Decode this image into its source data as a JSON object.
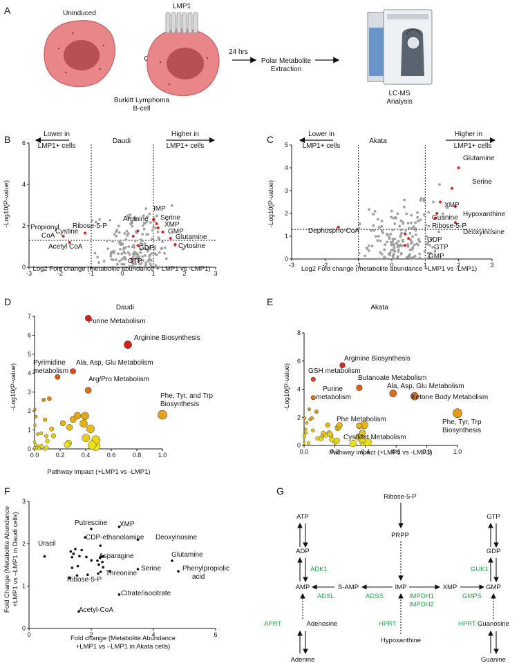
{
  "panels": {
    "A": {
      "letter": "A",
      "uninduced": "Uninduced",
      "or": "Or",
      "lmp1": "LMP1",
      "time": "24 hrs",
      "extraction_l1": "Polar Metabolite",
      "extraction_l2": "Extraction",
      "cell_l1": "Burkitt Lymphoma",
      "cell_l2": "B-cell",
      "lcms_l1": "LC-MS",
      "lcms_l2": "Analysis"
    },
    "B": {
      "letter": "B",
      "title": "Daudi",
      "lower_l1": "Lower in",
      "lower_l2": "LMP1+ cells",
      "higher_l1": "Higher in",
      "higher_l2": "LMP1+ cells",
      "ylabel": "-Log10(P-value)",
      "xlabel": "Log2 Fold change (metabolite abundance + LMP1 vs -LMP1)",
      "xticks": [
        "-3",
        "-2",
        "-1",
        "0",
        "1",
        "2",
        "3"
      ],
      "yticks": [
        "0",
        "2",
        "4",
        "6"
      ],
      "annotations": [
        "Propionyl",
        "CoA",
        "Cystine",
        "Acetyl CoA",
        "Ribose-5-P",
        "Arginine",
        "IMP",
        "Serine",
        "XMP",
        "GMP",
        "Glutamine",
        "Cytosine",
        "GDP",
        "GTP"
      ]
    },
    "C": {
      "letter": "C",
      "title": "Akata",
      "lower_l1": "Lower in",
      "lower_l2": "LMP1+ cells",
      "higher_l1": "Higher in",
      "higher_l2": "LMP1+ cells",
      "ylabel": "-Log10(P-value)",
      "xlabel": "Log2 Fold change (metabolite abundance +LMP1 vs -LMP1)",
      "xticks": [
        "-3",
        "-2",
        "-1",
        "0",
        "1",
        "2",
        "3"
      ],
      "yticks": [
        "0",
        "1",
        "2",
        "3",
        "4",
        "5"
      ],
      "annotations": [
        "Glutamine",
        "Serine",
        "XMP",
        "Hypoxanthine",
        "Guanine",
        "Ribose-5-P",
        "Deoxyinosine",
        "Dephospho-CoA",
        "GDP",
        "GTP",
        "GMP"
      ]
    },
    "D": {
      "letter": "D",
      "title_l1": "Daudi",
      "title_l2": "Purine Metabolism",
      "ylabel": "-Log10(P-value)",
      "xlabel": "Pathway impact (+LMP1 vs -LMP1)",
      "xticks": [
        "0.0",
        "0.2",
        "0.4",
        "0.6",
        "0.8",
        "1.0"
      ],
      "yticks": [
        "0",
        "1",
        "2",
        "3",
        "4",
        "5",
        "6",
        "7"
      ],
      "annotations": [
        "Arginine Biosynthesis",
        "Pyrimidine",
        "metabolism",
        "Ala, Asp, Glu Metabolism",
        "Arg/Pro Metabolism",
        "Phe, Tyr, and Trp",
        "Biosynthesis"
      ]
    },
    "E": {
      "letter": "E",
      "title": "Akata",
      "ylabel": "-Log10(P-value)",
      "xlabel": "Pathway impact (+LMP1 vs -LMP1)",
      "xticks": [
        "0.0",
        "0.2",
        "0.4",
        "0.6",
        "0.8",
        "1.0"
      ],
      "yticks": [
        "0",
        "2",
        "4",
        "6",
        "8"
      ],
      "annotations": [
        "Arginine Biosynthesis",
        "GSH metabolism",
        "Butanoate Metabolism",
        "Ala, Asp, Glu Metabolism",
        "Purine",
        "metabolism",
        "Ketone Body Metabolism",
        "Phe Metabolism",
        "Cys/Met Metabolism",
        "Phe, Tyr, Trp",
        "Biosynthesis"
      ]
    },
    "F": {
      "letter": "F",
      "ylabel_l1": "Fold Change (Metabolite Abundance",
      "ylabel_l2": "+LMP1 vs –LMP1 in Daudi cells)",
      "xlabel_l1": "Fold change (Metabolite Abundance",
      "xlabel_l2": "+LMP1 vs –LMP1 in Akata cells)",
      "xticks": [
        "0",
        "2",
        "4",
        "6"
      ],
      "yticks": [
        "0",
        "1",
        "2",
        "3"
      ],
      "annotations": [
        "Putrescine",
        "XMP",
        "CDP-ethanolamine",
        "Deoxyinosine",
        "Uracil",
        "Asparagine",
        "Glutamine",
        "Phenylpropiolic",
        "acid",
        "Serine",
        "Threonine",
        "Ribose-5-P",
        "Citrate/isocitrate",
        "Acetyl-CoA"
      ]
    },
    "G": {
      "letter": "G",
      "metabolites": [
        "Ribose-5-P",
        "PRPP",
        "ATP",
        "ADP",
        "AMP",
        "S-AMP",
        "IMP",
        "XMP",
        "GMP",
        "GDP",
        "GTP",
        "Adenosine",
        "Hypoxanthine",
        "Guanosine",
        "Adenine",
        "Guanine"
      ],
      "enzymes": [
        "ADK1",
        "ADSL",
        "ADSS",
        "IMPDH1",
        "IMPDH2",
        "GMPS",
        "GUK1",
        "APRT",
        "HPRT",
        "HPRT"
      ]
    }
  },
  "chart_data": [
    {
      "panel": "B",
      "type": "scatter",
      "title": "Daudi",
      "xlabel": "Log2 Fold change (metabolite abundance + LMP1 vs -LMP1)",
      "ylabel": "-Log10(P-value)",
      "xlim": [
        -3,
        3
      ],
      "ylim": [
        0,
        6
      ],
      "thresholds": {
        "x": [
          -1,
          1
        ],
        "y": 1.3
      },
      "highlighted": [
        {
          "name": "Propionyl CoA",
          "x": -1.9,
          "y": 1.5
        },
        {
          "name": "Cystine",
          "x": -1.2,
          "y": 1.65
        },
        {
          "name": "Acetyl CoA",
          "x": -1.7,
          "y": 1.2
        },
        {
          "name": "Ribose-5-P",
          "x": 0.35,
          "y": 1.5
        },
        {
          "name": "Arginine",
          "x": 0.5,
          "y": 1.75
        },
        {
          "name": "IMP",
          "x": 1.0,
          "y": 2.3
        },
        {
          "name": "Serine",
          "x": 1.1,
          "y": 2.1
        },
        {
          "name": "XMP",
          "x": 1.15,
          "y": 1.9
        },
        {
          "name": "GMP",
          "x": 1.3,
          "y": 1.7
        },
        {
          "name": "Glutamine",
          "x": 1.55,
          "y": 1.4
        },
        {
          "name": "Cytosine",
          "x": 1.7,
          "y": 1.1
        },
        {
          "name": "GDP",
          "x": 0.5,
          "y": 1.05
        },
        {
          "name": "GTP",
          "x": 0.3,
          "y": 0.4
        }
      ]
    },
    {
      "panel": "C",
      "type": "scatter",
      "title": "Akata",
      "xlabel": "Log2 Fold change (metabolite abundance +LMP1 vs -LMP1)",
      "ylabel": "-Log10(P-value)",
      "xlim": [
        -3,
        3
      ],
      "ylim": [
        0,
        5
      ],
      "thresholds": {
        "x": [
          -1,
          1
        ],
        "y": 1.3
      },
      "highlighted": [
        {
          "name": "Glutamine",
          "x": 2.0,
          "y": 4.0
        },
        {
          "name": "Serine",
          "x": 1.8,
          "y": 3.1
        },
        {
          "name": "XMP",
          "x": 1.45,
          "y": 2.5
        },
        {
          "name": "Hypoxanthine",
          "x": 1.9,
          "y": 2.3
        },
        {
          "name": "Guanine",
          "x": 1.35,
          "y": 2.0
        },
        {
          "name": "Ribose-5-P",
          "x": 1.3,
          "y": 1.8
        },
        {
          "name": "Deoxyinosine",
          "x": 1.9,
          "y": 1.6
        },
        {
          "name": "Dephospho-CoA",
          "x": -1.6,
          "y": 1.4
        },
        {
          "name": "GDP",
          "x": 0.4,
          "y": 1.1
        },
        {
          "name": "GTP",
          "x": 0.5,
          "y": 0.9
        },
        {
          "name": "GMP",
          "x": 0.4,
          "y": 0.6
        }
      ]
    },
    {
      "panel": "D",
      "type": "scatter",
      "title": "Daudi",
      "xlabel": "Pathway impact (+LMP1 vs -LMP1)",
      "ylabel": "-Log10(P-value)",
      "xlim": [
        0,
        1
      ],
      "ylim": [
        0,
        7
      ],
      "points": [
        {
          "name": "Purine Metabolism",
          "x": 0.42,
          "y": 6.9
        },
        {
          "name": "Arginine Biosynthesis",
          "x": 0.73,
          "y": 5.5
        },
        {
          "name": "Pyrimidine metabolism",
          "x": 0.18,
          "y": 3.8
        },
        {
          "name": "Ala, Asp, Glu Metabolism",
          "x": 0.3,
          "y": 4.1
        },
        {
          "name": "Arg/Pro Metabolism",
          "x": 0.42,
          "y": 3.1
        },
        {
          "name": "Phe, Tyr, and Trp Biosynthesis",
          "x": 1.0,
          "y": 1.8
        }
      ]
    },
    {
      "panel": "E",
      "type": "scatter",
      "title": "Akata",
      "xlabel": "Pathway impact (+LMP1 vs -LMP1)",
      "ylabel": "-Log10(P-value)",
      "xlim": [
        0,
        1
      ],
      "ylim": [
        0,
        8
      ],
      "points": [
        {
          "name": "Arginine Biosynthesis",
          "x": 0.25,
          "y": 5.7
        },
        {
          "name": "GSH metabolism",
          "x": 0.06,
          "y": 4.7
        },
        {
          "name": "Butanoate Metabolism",
          "x": 0.36,
          "y": 4.1
        },
        {
          "name": "Ala, Asp, Glu Metabolism",
          "x": 0.58,
          "y": 3.7
        },
        {
          "name": "Purine metabolism",
          "x": 0.06,
          "y": 3.4
        },
        {
          "name": "Ketone Body Metabolism",
          "x": 0.72,
          "y": 3.5
        },
        {
          "name": "Phe Metabolism",
          "x": 0.36,
          "y": 1.4
        },
        {
          "name": "Cys/Met Metabolism",
          "x": 0.38,
          "y": 0.9
        },
        {
          "name": "Phe, Tyr, Trp Biosynthesis",
          "x": 1.0,
          "y": 2.3
        }
      ]
    },
    {
      "panel": "F",
      "type": "scatter",
      "xlabel": "Fold change (Metabolite Abundance +LMP1 vs –LMP1 in Akata cells)",
      "ylabel": "Fold Change (Metabolite Abundance +LMP1 vs –LMP1 in Daudi cells)",
      "xlim": [
        0,
        6
      ],
      "ylim": [
        0,
        3
      ],
      "points": [
        {
          "name": "Putrescine",
          "x": 2.0,
          "y": 2.35
        },
        {
          "name": "XMP",
          "x": 2.9,
          "y": 2.4
        },
        {
          "name": "CDP-ethanolamine",
          "x": 1.8,
          "y": 2.15
        },
        {
          "name": "Deoxyinosine",
          "x": 3.5,
          "y": 2.1
        },
        {
          "name": "Uracil",
          "x": 0.5,
          "y": 1.7
        },
        {
          "name": "Asparagine",
          "x": 2.2,
          "y": 1.6
        },
        {
          "name": "Glutamine",
          "x": 4.6,
          "y": 1.6
        },
        {
          "name": "Phenylpropiolic acid",
          "x": 4.8,
          "y": 1.35
        },
        {
          "name": "Serine",
          "x": 3.5,
          "y": 1.4
        },
        {
          "name": "Threonine",
          "x": 2.6,
          "y": 1.35
        },
        {
          "name": "Ribose-5-P",
          "x": 1.3,
          "y": 1.2
        },
        {
          "name": "Citrate/isocitrate",
          "x": 2.9,
          "y": 0.8
        },
        {
          "name": "Acetyl-CoA",
          "x": 1.6,
          "y": 0.4
        }
      ]
    }
  ]
}
